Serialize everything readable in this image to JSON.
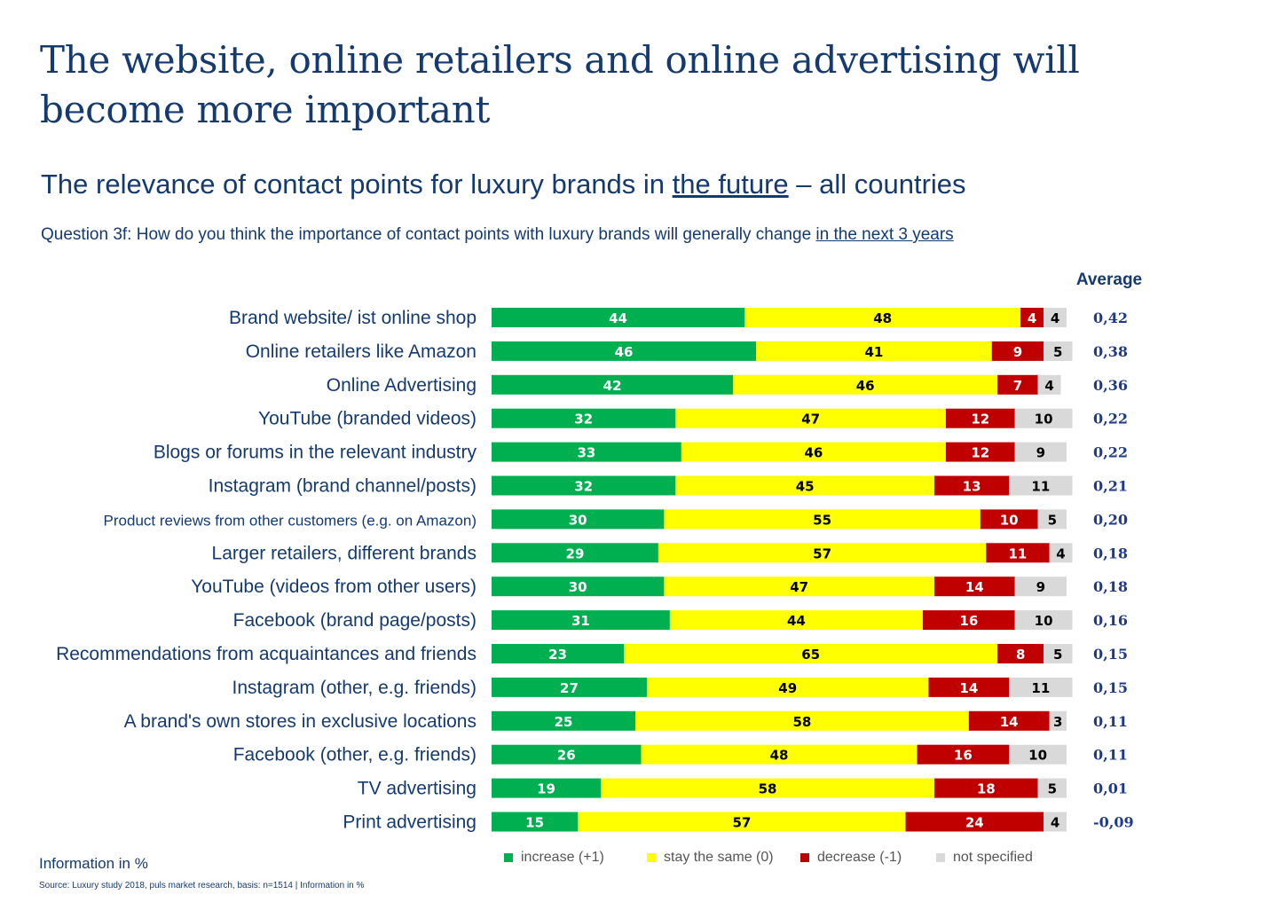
{
  "title": "The website, online retailers and online advertising will become more important",
  "subtitle": {
    "before": "The relevance of contact points for luxury brands in ",
    "underlined": "the future",
    "after": " – all countries"
  },
  "question": {
    "before": "Question 3f: How do you think the importance of contact points with luxury brands will generally change ",
    "underlined": "in the next 3 years"
  },
  "average_header": "Average",
  "info_label": "Information in %",
  "source": "Source: Luxury study 2018, puls market research, basis: n=1514 | Information in %",
  "colors": {
    "increase": "#00b050",
    "same": "#ffff00",
    "decrease": "#c00000",
    "not_specified": "#d9d9d9",
    "label_text": "#143a70",
    "average_text": "#1f3a8a"
  },
  "legend": [
    {
      "label": "increase (+1)",
      "color": "#00b050"
    },
    {
      "label": "stay the same (0)",
      "color": "#ffff00"
    },
    {
      "label": "decrease (-1)",
      "color": "#c00000"
    },
    {
      "label": "not specified",
      "color": "#d9d9d9"
    }
  ],
  "chart_data": {
    "type": "bar",
    "orientation": "horizontal",
    "stacked": true,
    "xlim": [
      0,
      100
    ],
    "categories": [
      "Brand website/ ist online shop",
      "Online retailers like Amazon",
      "Online Advertising",
      "YouTube (branded videos)",
      "Blogs or forums in the relevant industry",
      "Instagram (brand channel/posts)",
      "Product reviews from other customers (e.g. on Amazon)",
      "Larger retailers, different brands",
      "YouTube (videos from other users)",
      "Facebook (brand page/posts)",
      "Recommendations from acquaintances and friends",
      "Instagram (other, e.g. friends)",
      "A brand's own stores in exclusive locations",
      "Facebook (other, e.g. friends)",
      "TV advertising",
      "Print advertising"
    ],
    "series": [
      {
        "name": "increase (+1)",
        "values": [
          44,
          46,
          42,
          32,
          33,
          32,
          30,
          29,
          30,
          31,
          23,
          27,
          25,
          26,
          19,
          15
        ]
      },
      {
        "name": "stay the same (0)",
        "values": [
          48,
          41,
          46,
          47,
          46,
          45,
          55,
          57,
          47,
          44,
          65,
          49,
          58,
          48,
          58,
          57
        ]
      },
      {
        "name": "decrease (-1)",
        "values": [
          4,
          9,
          7,
          12,
          12,
          13,
          10,
          11,
          14,
          16,
          8,
          14,
          14,
          16,
          18,
          24
        ]
      },
      {
        "name": "not specified",
        "values": [
          4,
          5,
          4,
          10,
          9,
          11,
          5,
          4,
          9,
          10,
          5,
          11,
          3,
          10,
          5,
          4
        ]
      }
    ],
    "averages": [
      "0,42",
      "0,38",
      "0,36",
      "0,22",
      "0,22",
      "0,21",
      "0,20",
      "0,18",
      "0,18",
      "0,16",
      "0,15",
      "0,15",
      "0,11",
      "0,11",
      "0,01",
      "-0,09"
    ]
  }
}
